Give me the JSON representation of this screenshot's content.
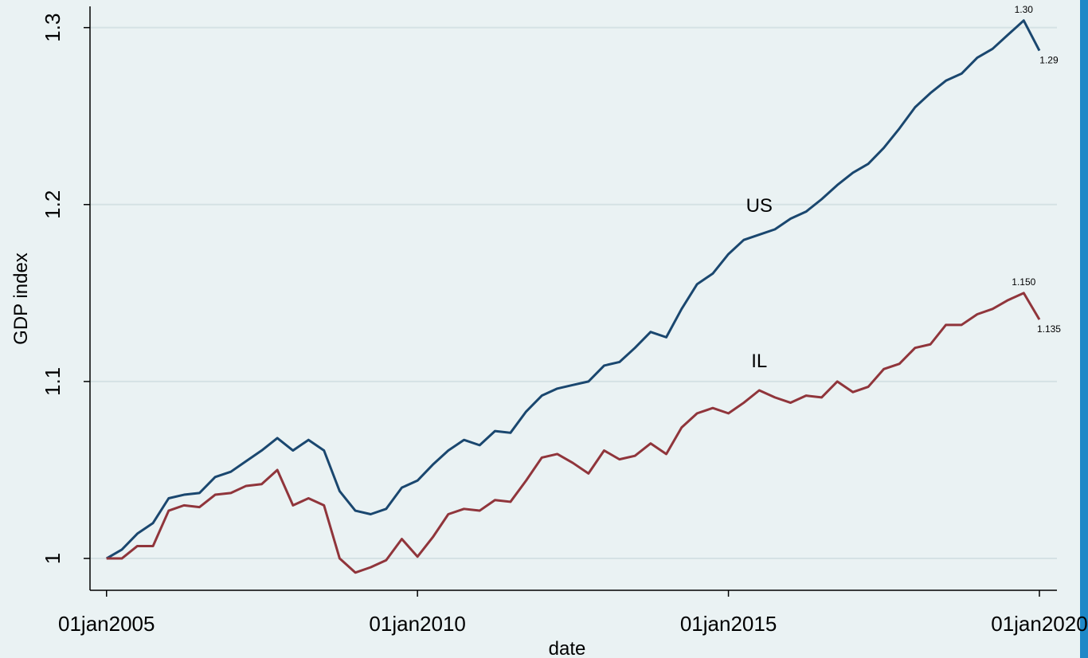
{
  "chart_data": {
    "type": "line",
    "ylabel": "GDP index",
    "xlabel": "date",
    "x": [
      "2005-01-01",
      "2005-04-01",
      "2005-07-01",
      "2005-10-01",
      "2006-01-01",
      "2006-04-01",
      "2006-07-01",
      "2006-10-01",
      "2007-01-01",
      "2007-04-01",
      "2007-07-01",
      "2007-10-01",
      "2008-01-01",
      "2008-04-01",
      "2008-07-01",
      "2008-10-01",
      "2009-01-01",
      "2009-04-01",
      "2009-07-01",
      "2009-10-01",
      "2010-01-01",
      "2010-04-01",
      "2010-07-01",
      "2010-10-01",
      "2011-01-01",
      "2011-04-01",
      "2011-07-01",
      "2011-10-01",
      "2012-01-01",
      "2012-04-01",
      "2012-07-01",
      "2012-10-01",
      "2013-01-01",
      "2013-04-01",
      "2013-07-01",
      "2013-10-01",
      "2014-01-01",
      "2014-04-01",
      "2014-07-01",
      "2014-10-01",
      "2015-01-01",
      "2015-04-01",
      "2015-07-01",
      "2015-10-01",
      "2016-01-01",
      "2016-04-01",
      "2016-07-01",
      "2016-10-01",
      "2017-01-01",
      "2017-04-01",
      "2017-07-01",
      "2017-10-01",
      "2018-01-01",
      "2018-04-01",
      "2018-07-01",
      "2018-10-01",
      "2019-01-01",
      "2019-04-01",
      "2019-07-01",
      "2019-10-01",
      "2020-01-01"
    ],
    "series": [
      {
        "name": "US",
        "color": "#1a476f",
        "values": [
          1.0,
          1.005,
          1.014,
          1.02,
          1.034,
          1.036,
          1.037,
          1.046,
          1.049,
          1.055,
          1.061,
          1.068,
          1.061,
          1.067,
          1.061,
          1.038,
          1.027,
          1.025,
          1.028,
          1.04,
          1.044,
          1.053,
          1.061,
          1.067,
          1.064,
          1.072,
          1.071,
          1.083,
          1.092,
          1.096,
          1.098,
          1.1,
          1.109,
          1.111,
          1.119,
          1.128,
          1.125,
          1.141,
          1.155,
          1.161,
          1.172,
          1.18,
          1.183,
          1.186,
          1.192,
          1.196,
          1.203,
          1.211,
          1.218,
          1.223,
          1.232,
          1.243,
          1.255,
          1.263,
          1.27,
          1.274,
          1.283,
          1.288,
          1.296,
          1.304,
          1.287
        ],
        "value_labels": [
          null,
          null,
          null,
          null,
          null,
          null,
          null,
          null,
          null,
          null,
          null,
          null,
          null,
          null,
          null,
          null,
          null,
          null,
          null,
          null,
          null,
          null,
          null,
          null,
          null,
          null,
          null,
          null,
          null,
          null,
          null,
          null,
          null,
          null,
          null,
          null,
          null,
          null,
          null,
          null,
          null,
          null,
          null,
          null,
          null,
          null,
          null,
          null,
          null,
          null,
          null,
          null,
          null,
          null,
          null,
          null,
          null,
          null,
          null,
          "1.30",
          "1.29"
        ]
      },
      {
        "name": "IL",
        "color": "#90353b",
        "values": [
          1.0,
          1.0,
          1.007,
          1.007,
          1.027,
          1.03,
          1.029,
          1.036,
          1.037,
          1.041,
          1.042,
          1.05,
          1.03,
          1.034,
          1.03,
          1.0,
          0.992,
          0.995,
          0.999,
          1.011,
          1.001,
          1.012,
          1.025,
          1.028,
          1.027,
          1.033,
          1.032,
          1.044,
          1.057,
          1.059,
          1.054,
          1.048,
          1.061,
          1.056,
          1.058,
          1.065,
          1.059,
          1.074,
          1.082,
          1.085,
          1.082,
          1.088,
          1.095,
          1.091,
          1.088,
          1.092,
          1.091,
          1.1,
          1.094,
          1.097,
          1.107,
          1.11,
          1.119,
          1.121,
          1.132,
          1.132,
          1.138,
          1.141,
          1.146,
          1.15,
          1.135
        ],
        "value_labels": [
          null,
          null,
          null,
          null,
          null,
          null,
          null,
          null,
          null,
          null,
          null,
          null,
          null,
          null,
          null,
          null,
          null,
          null,
          null,
          null,
          null,
          null,
          null,
          null,
          null,
          null,
          null,
          null,
          null,
          null,
          null,
          null,
          null,
          null,
          null,
          null,
          null,
          null,
          null,
          null,
          null,
          null,
          null,
          null,
          null,
          null,
          null,
          null,
          null,
          null,
          null,
          null,
          null,
          null,
          null,
          null,
          null,
          null,
          null,
          "1.150",
          "1.135"
        ]
      }
    ],
    "annotations": [
      {
        "text": "US",
        "x": "2015-07-01",
        "y": 1.2
      },
      {
        "text": "IL",
        "x": "2015-07-01",
        "y": 1.112
      }
    ],
    "xlim": [
      "2004-09-26",
      "2020-04-13"
    ],
    "xticks": [
      {
        "value": "2005-01-01",
        "label": "01jan2005"
      },
      {
        "value": "2010-01-01",
        "label": "01jan2010"
      },
      {
        "value": "2015-01-01",
        "label": "01jan2015"
      },
      {
        "value": "2020-01-01",
        "label": "01jan2020"
      }
    ],
    "ylim": [
      0.982,
      1.312
    ],
    "yticks": [
      1,
      1.1,
      1.2,
      1.3
    ],
    "grid": true
  }
}
